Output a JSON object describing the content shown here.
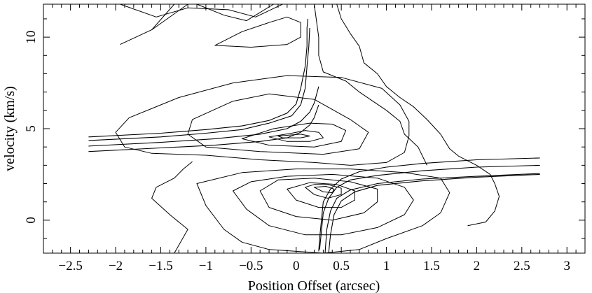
{
  "chart_data": {
    "type": "contour",
    "title": "",
    "xlabel": "Position Offset (arcsec)",
    "ylabel": "velocity (km/s)",
    "xlim": [
      -2.8,
      3.2
    ],
    "ylim": [
      -1.8,
      11.8
    ],
    "grid": false,
    "x_ticks": [
      -2.5,
      -2,
      -1.5,
      -1,
      -0.5,
      0,
      0.5,
      1,
      1.5,
      2,
      2.5,
      3
    ],
    "x_tick_labels": [
      "−2.5",
      "−2",
      "−1.5",
      "−1",
      "−0.5",
      "0",
      "0.5",
      "1",
      "1.5",
      "2",
      "2.5",
      "3"
    ],
    "y_ticks": [
      0,
      5,
      10
    ],
    "y_tick_labels": [
      "0",
      "5",
      "10"
    ],
    "x_minor_step": 0.1,
    "y_minor_step": 1,
    "contours": [
      {
        "level": 1,
        "closed": false,
        "points": [
          [
            -1.95,
            11.8
          ],
          [
            -1.55,
            11.1
          ],
          [
            -1.2,
            11.6
          ],
          [
            -0.75,
            11.5
          ],
          [
            -0.45,
            11.1
          ],
          [
            -0.15,
            11.8
          ]
        ]
      },
      {
        "level": 1,
        "closed": false,
        "points": [
          [
            -1.95,
            9.6
          ],
          [
            -1.6,
            10.4
          ],
          [
            -1.35,
            11.8
          ]
        ]
      },
      {
        "level": 1,
        "closed": false,
        "points": [
          [
            -1.6,
            10.4
          ],
          [
            -1.2,
            11.8
          ]
        ]
      },
      {
        "level": 1,
        "closed": false,
        "points": [
          [
            -1.1,
            11.8
          ],
          [
            -0.8,
            11.2
          ],
          [
            -0.55,
            10.9
          ],
          [
            -0.25,
            11.8
          ]
        ]
      },
      {
        "level": 1,
        "closed": true,
        "points": [
          [
            -0.9,
            9.55
          ],
          [
            -0.6,
            10.3
          ],
          [
            -0.3,
            10.8
          ],
          [
            -0.1,
            11.1
          ],
          [
            0.05,
            10.8
          ],
          [
            0.05,
            10.0
          ],
          [
            -0.1,
            9.6
          ],
          [
            -0.5,
            9.45
          ]
        ]
      },
      {
        "level": 1,
        "closed": false,
        "points": [
          [
            0.2,
            11.8
          ],
          [
            0.25,
            10.0
          ],
          [
            0.25,
            9.0
          ],
          [
            0.3,
            8.1
          ],
          [
            0.55,
            7.6
          ],
          [
            0.7,
            7.0
          ],
          [
            0.85,
            6.5
          ],
          [
            1.0,
            6.0
          ],
          [
            1.15,
            5.4
          ],
          [
            1.2,
            4.7
          ],
          [
            1.35,
            4.0
          ],
          [
            1.45,
            3.0
          ]
        ]
      },
      {
        "level": 1,
        "closed": false,
        "points": [
          [
            0.45,
            11.8
          ],
          [
            0.5,
            11.0
          ],
          [
            0.6,
            10.2
          ],
          [
            0.7,
            9.5
          ],
          [
            0.75,
            8.6
          ],
          [
            0.9,
            8.0
          ],
          [
            1.0,
            7.3
          ],
          [
            1.15,
            6.7
          ],
          [
            1.3,
            6.2
          ],
          [
            1.45,
            5.5
          ],
          [
            1.6,
            4.7
          ],
          [
            1.7,
            3.9
          ],
          [
            1.8,
            3.5
          ],
          [
            2.0,
            3.0
          ],
          [
            2.15,
            2.5
          ],
          [
            2.2,
            2.0
          ],
          [
            2.25,
            1.3
          ],
          [
            2.2,
            0.5
          ],
          [
            2.1,
            -0.1
          ],
          [
            1.9,
            -0.3
          ]
        ]
      },
      {
        "level": 2,
        "closed": true,
        "points": [
          [
            -1.3,
            6.7
          ],
          [
            -0.7,
            7.5
          ],
          [
            -0.1,
            7.9
          ],
          [
            0.5,
            7.8
          ],
          [
            0.95,
            7.2
          ],
          [
            1.15,
            6.3
          ],
          [
            1.25,
            5.4
          ],
          [
            1.25,
            4.6
          ],
          [
            1.2,
            3.7
          ],
          [
            1.0,
            3.15
          ],
          [
            0.6,
            3.0
          ],
          [
            0.2,
            3.15
          ],
          [
            -0.4,
            3.3
          ],
          [
            -1.0,
            3.55
          ],
          [
            -1.6,
            3.65
          ],
          [
            -1.9,
            4.0
          ],
          [
            -2.0,
            4.8
          ],
          [
            -1.85,
            5.6
          ],
          [
            -1.55,
            6.2
          ]
        ]
      },
      {
        "level": 3,
        "closed": true,
        "points": [
          [
            -1.15,
            5.5
          ],
          [
            -0.7,
            6.5
          ],
          [
            -0.3,
            6.9
          ],
          [
            0.2,
            6.6
          ],
          [
            0.6,
            5.5
          ],
          [
            0.8,
            4.8
          ],
          [
            0.7,
            3.9
          ],
          [
            0.3,
            3.6
          ],
          [
            -0.4,
            3.75
          ],
          [
            -1.0,
            4.0
          ],
          [
            -1.2,
            4.7
          ]
        ]
      },
      {
        "level": 4,
        "closed": true,
        "points": [
          [
            -0.6,
            4.45
          ],
          [
            -0.25,
            5.0
          ],
          [
            0.15,
            5.3
          ],
          [
            0.4,
            5.25
          ],
          [
            0.55,
            4.9
          ],
          [
            0.5,
            4.3
          ],
          [
            0.2,
            4.0
          ],
          [
            -0.3,
            4.1
          ]
        ]
      },
      {
        "level": 5,
        "closed": true,
        "points": [
          [
            -0.3,
            4.55
          ],
          [
            -0.05,
            4.75
          ],
          [
            0.1,
            4.9
          ],
          [
            0.25,
            4.8
          ],
          [
            0.3,
            4.5
          ],
          [
            0.15,
            4.3
          ],
          [
            -0.1,
            4.3
          ]
        ]
      },
      {
        "level": 6,
        "closed": true,
        "points": [
          [
            -0.2,
            4.6
          ],
          [
            0.05,
            4.7
          ],
          [
            0.15,
            4.6
          ],
          [
            0.05,
            4.5
          ],
          [
            -0.15,
            4.5
          ]
        ]
      },
      {
        "level": 1,
        "closed": false,
        "points": [
          [
            -1.35,
            -1.8
          ],
          [
            -1.2,
            -0.5
          ],
          [
            -1.4,
            0.3
          ],
          [
            -1.6,
            1.2
          ],
          [
            -1.55,
            1.8
          ],
          [
            -1.35,
            2.3
          ],
          [
            -1.25,
            2.8
          ],
          [
            -1.15,
            3.2
          ]
        ]
      },
      {
        "level": 2,
        "closed": true,
        "points": [
          [
            -1.1,
            2.0
          ],
          [
            -1.0,
            0.8
          ],
          [
            -0.8,
            -0.5
          ],
          [
            -0.6,
            -1.2
          ],
          [
            -0.3,
            -1.6
          ],
          [
            0.3,
            -1.8
          ],
          [
            0.7,
            -1.6
          ],
          [
            1.0,
            -1.0
          ],
          [
            1.4,
            -0.3
          ],
          [
            1.6,
            0.4
          ],
          [
            1.7,
            1.5
          ],
          [
            1.6,
            2.3
          ],
          [
            1.2,
            2.6
          ],
          [
            0.6,
            2.8
          ],
          [
            0.0,
            2.8
          ],
          [
            -0.6,
            2.6
          ]
        ]
      },
      {
        "level": 3,
        "closed": true,
        "points": [
          [
            -0.7,
            1.6
          ],
          [
            -0.55,
            0.6
          ],
          [
            -0.3,
            -0.3
          ],
          [
            0.1,
            -0.8
          ],
          [
            0.5,
            -0.8
          ],
          [
            0.9,
            -0.4
          ],
          [
            1.2,
            0.3
          ],
          [
            1.3,
            1.1
          ],
          [
            1.2,
            1.8
          ],
          [
            0.9,
            2.3
          ],
          [
            0.4,
            2.5
          ],
          [
            -0.1,
            2.4
          ],
          [
            -0.5,
            2.1
          ]
        ]
      },
      {
        "level": 4,
        "closed": true,
        "points": [
          [
            -0.4,
            1.6
          ],
          [
            -0.3,
            0.7
          ],
          [
            0.0,
            0.2
          ],
          [
            0.4,
            0.0
          ],
          [
            0.75,
            0.4
          ],
          [
            0.9,
            1.0
          ],
          [
            0.9,
            1.7
          ],
          [
            0.6,
            2.1
          ],
          [
            0.2,
            2.3
          ],
          [
            -0.2,
            2.2
          ]
        ]
      },
      {
        "level": 5,
        "closed": true,
        "points": [
          [
            -0.1,
            1.7
          ],
          [
            0.0,
            1.1
          ],
          [
            0.25,
            0.7
          ],
          [
            0.5,
            0.7
          ],
          [
            0.65,
            1.1
          ],
          [
            0.65,
            1.6
          ],
          [
            0.45,
            1.95
          ],
          [
            0.15,
            2.05
          ]
        ]
      },
      {
        "level": 6,
        "closed": true,
        "points": [
          [
            0.1,
            1.8
          ],
          [
            0.2,
            1.4
          ],
          [
            0.35,
            1.2
          ],
          [
            0.5,
            1.4
          ],
          [
            0.5,
            1.75
          ],
          [
            0.35,
            1.95
          ],
          [
            0.2,
            1.95
          ]
        ]
      },
      {
        "level": 7,
        "closed": true,
        "points": [
          [
            0.2,
            1.8
          ],
          [
            0.3,
            1.55
          ],
          [
            0.4,
            1.5
          ],
          [
            0.42,
            1.7
          ],
          [
            0.33,
            1.85
          ]
        ]
      }
    ],
    "model_curves": [
      {
        "points": [
          [
            -2.3,
            4.55
          ],
          [
            -1.5,
            4.75
          ],
          [
            -1.0,
            4.95
          ],
          [
            -0.6,
            5.15
          ],
          [
            -0.3,
            5.45
          ],
          [
            -0.1,
            5.85
          ],
          [
            0.0,
            6.35
          ],
          [
            0.05,
            7.2
          ],
          [
            0.1,
            8.4
          ],
          [
            0.12,
            9.5
          ],
          [
            0.12,
            10.5
          ],
          [
            0.13,
            11.0
          ]
        ]
      },
      {
        "points": [
          [
            -2.3,
            4.35
          ],
          [
            -1.5,
            4.55
          ],
          [
            -1.0,
            4.75
          ],
          [
            -0.6,
            4.95
          ],
          [
            -0.3,
            5.3
          ],
          [
            -0.05,
            5.7
          ],
          [
            0.05,
            6.3
          ],
          [
            0.1,
            7.2
          ],
          [
            0.12,
            8.4
          ],
          [
            0.14,
            9.5
          ],
          [
            0.15,
            10.5
          ]
        ]
      },
      {
        "points": [
          [
            -2.3,
            4.05
          ],
          [
            -1.5,
            4.25
          ],
          [
            -0.9,
            4.45
          ],
          [
            -0.4,
            4.7
          ],
          [
            -0.1,
            5.0
          ],
          [
            0.05,
            5.4
          ],
          [
            0.15,
            5.9
          ],
          [
            0.2,
            6.4
          ],
          [
            0.25,
            7.3
          ]
        ]
      },
      {
        "points": [
          [
            -2.3,
            3.75
          ],
          [
            -1.5,
            3.95
          ],
          [
            -0.9,
            4.1
          ],
          [
            -0.4,
            4.3
          ],
          [
            -0.1,
            4.5
          ],
          [
            0.05,
            4.8
          ],
          [
            0.15,
            5.2
          ],
          [
            0.2,
            5.6
          ],
          [
            0.25,
            6.3
          ]
        ]
      },
      {
        "points": [
          [
            2.7,
            3.4
          ],
          [
            2.0,
            3.3
          ],
          [
            1.4,
            3.1
          ],
          [
            1.0,
            2.9
          ],
          [
            0.7,
            2.65
          ],
          [
            0.5,
            2.25
          ],
          [
            0.38,
            1.7
          ],
          [
            0.3,
            1.0
          ],
          [
            0.28,
            0.0
          ],
          [
            0.26,
            -1.0
          ],
          [
            0.25,
            -1.7
          ]
        ]
      },
      {
        "points": [
          [
            2.7,
            3.0
          ],
          [
            2.0,
            2.9
          ],
          [
            1.4,
            2.7
          ],
          [
            0.9,
            2.45
          ],
          [
            0.6,
            2.2
          ],
          [
            0.45,
            1.8
          ],
          [
            0.36,
            1.2
          ],
          [
            0.3,
            0.4
          ],
          [
            0.28,
            -0.6
          ],
          [
            0.26,
            -1.6
          ]
        ]
      },
      {
        "points": [
          [
            2.7,
            2.55
          ],
          [
            2.0,
            2.4
          ],
          [
            1.4,
            2.25
          ],
          [
            0.9,
            2.0
          ],
          [
            0.6,
            1.65
          ],
          [
            0.45,
            1.2
          ],
          [
            0.38,
            0.5
          ],
          [
            0.34,
            -0.5
          ],
          [
            0.32,
            -1.8
          ]
        ]
      },
      {
        "points": [
          [
            2.7,
            2.5
          ],
          [
            2.0,
            2.35
          ],
          [
            1.4,
            2.15
          ],
          [
            0.9,
            1.9
          ],
          [
            0.65,
            1.55
          ],
          [
            0.5,
            1.05
          ],
          [
            0.42,
            0.3
          ],
          [
            0.38,
            -0.8
          ],
          [
            0.36,
            -1.8
          ]
        ]
      }
    ]
  }
}
